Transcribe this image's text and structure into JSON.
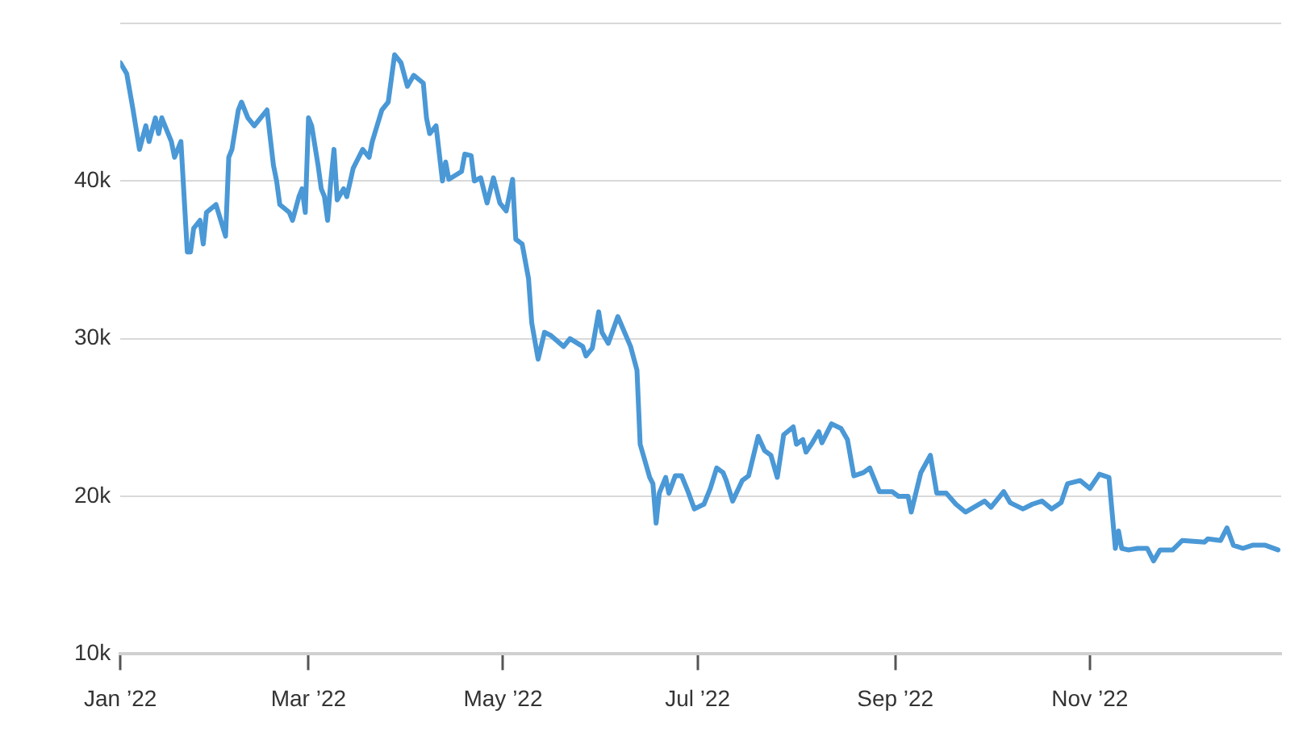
{
  "chart_data": {
    "type": "line",
    "xlim": [
      "2022-01-01",
      "2022-12-31"
    ],
    "xticks": [
      {
        "value": "2022-01-01",
        "label": "Jan ’22"
      },
      {
        "value": "2022-03-01",
        "label": "Mar ’22"
      },
      {
        "value": "2022-05-01",
        "label": "May ’22"
      },
      {
        "value": "2022-07-01",
        "label": "Jul ’22"
      },
      {
        "value": "2022-09-01",
        "label": "Sep ’22"
      },
      {
        "value": "2022-11-01",
        "label": "Nov ’22"
      }
    ],
    "ylim": [
      10000,
      50000
    ],
    "yticks": [
      {
        "value": 10000,
        "label": "10k"
      },
      {
        "value": 20000,
        "label": "20k"
      },
      {
        "value": 30000,
        "label": "30k"
      },
      {
        "value": 40000,
        "label": "40k"
      },
      {
        "value": 50000,
        "label": null
      }
    ],
    "grid": "y",
    "legend": false,
    "marker": "none",
    "line_style": "solid",
    "series": [
      {
        "color": "#4a98d6",
        "x": [
          "2022-01-01",
          "2022-01-03",
          "2022-01-05",
          "2022-01-07",
          "2022-01-09",
          "2022-01-10",
          "2022-01-12",
          "2022-01-13",
          "2022-01-14",
          "2022-01-17",
          "2022-01-18",
          "2022-01-20",
          "2022-01-22",
          "2022-01-23",
          "2022-01-24",
          "2022-01-26",
          "2022-01-27",
          "2022-01-28",
          "2022-01-31",
          "2022-02-03",
          "2022-02-04",
          "2022-02-05",
          "2022-02-07",
          "2022-02-08",
          "2022-02-10",
          "2022-02-12",
          "2022-02-14",
          "2022-02-16",
          "2022-02-18",
          "2022-02-19",
          "2022-02-20",
          "2022-02-23",
          "2022-02-24",
          "2022-02-26",
          "2022-02-27",
          "2022-02-28",
          "2022-03-01",
          "2022-03-02",
          "2022-03-04",
          "2022-03-05",
          "2022-03-06",
          "2022-03-07",
          "2022-03-08",
          "2022-03-09",
          "2022-03-10",
          "2022-03-12",
          "2022-03-13",
          "2022-03-15",
          "2022-03-18",
          "2022-03-20",
          "2022-03-21",
          "2022-03-24",
          "2022-03-26",
          "2022-03-28",
          "2022-03-30",
          "2022-04-01",
          "2022-04-03",
          "2022-04-06",
          "2022-04-07",
          "2022-04-08",
          "2022-04-10",
          "2022-04-12",
          "2022-04-13",
          "2022-04-14",
          "2022-04-18",
          "2022-04-19",
          "2022-04-21",
          "2022-04-22",
          "2022-04-24",
          "2022-04-26",
          "2022-04-28",
          "2022-04-30",
          "2022-05-02",
          "2022-05-04",
          "2022-05-05",
          "2022-05-07",
          "2022-05-09",
          "2022-05-10",
          "2022-05-12",
          "2022-05-14",
          "2022-05-16",
          "2022-05-20",
          "2022-05-22",
          "2022-05-26",
          "2022-05-27",
          "2022-05-29",
          "2022-05-31",
          "2022-06-01",
          "2022-06-03",
          "2022-06-06",
          "2022-06-10",
          "2022-06-12",
          "2022-06-13",
          "2022-06-16",
          "2022-06-17",
          "2022-06-18",
          "2022-06-19",
          "2022-06-21",
          "2022-06-22",
          "2022-06-24",
          "2022-06-26",
          "2022-06-28",
          "2022-06-30",
          "2022-07-03",
          "2022-07-05",
          "2022-07-07",
          "2022-07-09",
          "2022-07-10",
          "2022-07-12",
          "2022-07-15",
          "2022-07-17",
          "2022-07-20",
          "2022-07-22",
          "2022-07-24",
          "2022-07-26",
          "2022-07-28",
          "2022-07-31",
          "2022-08-01",
          "2022-08-03",
          "2022-08-04",
          "2022-08-06",
          "2022-08-08",
          "2022-08-09",
          "2022-08-12",
          "2022-08-15",
          "2022-08-17",
          "2022-08-19",
          "2022-08-22",
          "2022-08-24",
          "2022-08-27",
          "2022-08-31",
          "2022-09-02",
          "2022-09-05",
          "2022-09-06",
          "2022-09-09",
          "2022-09-12",
          "2022-09-14",
          "2022-09-17",
          "2022-09-20",
          "2022-09-23",
          "2022-09-29",
          "2022-10-01",
          "2022-10-05",
          "2022-10-07",
          "2022-10-11",
          "2022-10-14",
          "2022-10-17",
          "2022-10-20",
          "2022-10-23",
          "2022-10-25",
          "2022-10-29",
          "2022-11-01",
          "2022-11-04",
          "2022-11-07",
          "2022-11-09",
          "2022-11-10",
          "2022-11-11",
          "2022-11-13",
          "2022-11-16",
          "2022-11-19",
          "2022-11-21",
          "2022-11-23",
          "2022-11-27",
          "2022-11-30",
          "2022-12-07",
          "2022-12-08",
          "2022-12-12",
          "2022-12-14",
          "2022-12-16",
          "2022-12-19",
          "2022-12-22",
          "2022-12-26",
          "2022-12-30"
        ],
        "values": [
          47500,
          46800,
          44500,
          42000,
          43500,
          42500,
          44000,
          43000,
          44000,
          42500,
          41500,
          42500,
          35500,
          35500,
          37000,
          37500,
          36000,
          38000,
          38500,
          36500,
          41500,
          42000,
          44500,
          45000,
          44000,
          43500,
          44000,
          44500,
          41000,
          40000,
          38500,
          38000,
          37500,
          39000,
          39500,
          38000,
          44000,
          43500,
          41000,
          39500,
          39000,
          37500,
          40000,
          42000,
          38800,
          39500,
          39000,
          40800,
          42000,
          41500,
          42500,
          44500,
          45000,
          48000,
          47500,
          46000,
          46700,
          46200,
          44000,
          43000,
          43500,
          40000,
          41200,
          40100,
          40600,
          41700,
          41600,
          40000,
          40200,
          38600,
          40200,
          38600,
          38100,
          40100,
          36300,
          36000,
          33800,
          31000,
          28700,
          30400,
          30200,
          29500,
          30000,
          29500,
          28900,
          29400,
          31700,
          30400,
          29700,
          31400,
          29500,
          28000,
          23300,
          21200,
          20800,
          18300,
          20200,
          21200,
          20200,
          21300,
          21300,
          20300,
          19200,
          19500,
          20500,
          21800,
          21500,
          21000,
          19700,
          21000,
          21300,
          23800,
          22900,
          22600,
          21200,
          23900,
          24400,
          23300,
          23600,
          22800,
          23400,
          24100,
          23400,
          24600,
          24300,
          23600,
          21300,
          21500,
          21800,
          20300,
          20300,
          20000,
          20000,
          19000,
          21500,
          22600,
          20200,
          20200,
          19500,
          19000,
          19700,
          19300,
          20300,
          19600,
          19200,
          19500,
          19700,
          19200,
          19600,
          20800,
          21000,
          20500,
          21400,
          21200,
          16700,
          17800,
          16700,
          16600,
          16700,
          16700,
          15900,
          16600,
          16600,
          17200,
          17100,
          17300,
          17200,
          18000,
          16900,
          16700,
          16900,
          16900,
          16600
        ]
      }
    ]
  }
}
